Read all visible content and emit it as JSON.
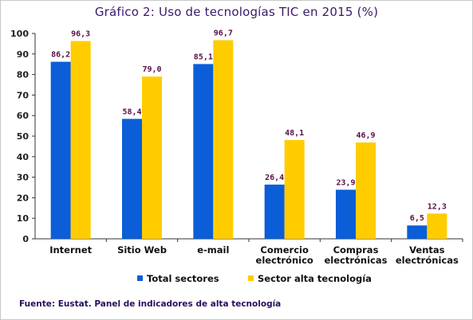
{
  "chart_data": {
    "type": "bar",
    "title": "Gráfico 2: Uso de tecnologías TIC en 2015 (%)",
    "categories": [
      [
        "Internet"
      ],
      [
        "Sitio Web"
      ],
      [
        "e-mail"
      ],
      [
        "Comercio",
        "electrónico"
      ],
      [
        "Compras",
        "electrónicas"
      ],
      [
        "Ventas",
        "electrónicas"
      ]
    ],
    "series": [
      {
        "name": "Total sectores",
        "color": "#0b5ed7",
        "values": [
          86.2,
          58.4,
          85.1,
          26.4,
          23.9,
          6.5
        ],
        "labels": [
          "86,2",
          "58,4",
          "85,1",
          "26,4",
          "23,9",
          "6,5"
        ]
      },
      {
        "name": "Sector alta tecnología",
        "color": "#ffcc00",
        "values": [
          96.3,
          79.0,
          96.7,
          48.1,
          46.9,
          12.3
        ],
        "labels": [
          "96,3",
          "79,0",
          "96,7",
          "48,1",
          "46,9",
          "12,3"
        ]
      }
    ],
    "ylim": [
      0,
      100
    ],
    "yticks": [
      0,
      10,
      20,
      30,
      40,
      50,
      60,
      70,
      80,
      90,
      100
    ],
    "grid": false,
    "legend": "bottom"
  },
  "source": "Fuente: Eustat. Panel de indicadores de alta tecnología"
}
